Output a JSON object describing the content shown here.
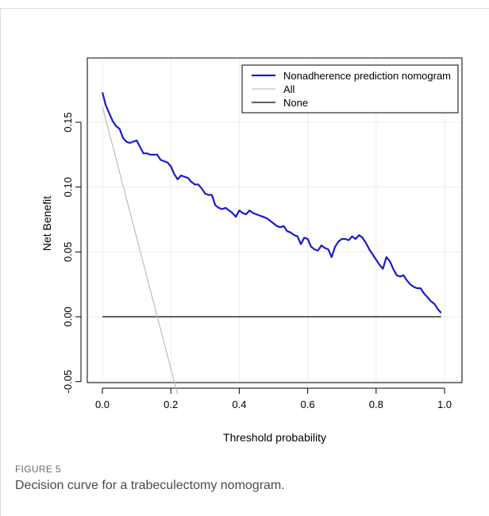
{
  "figure": {
    "label": "FIGURE 5",
    "caption": "Decision curve for a trabeculectomy nomogram."
  },
  "chart_data": {
    "type": "line",
    "xlabel": "Threshold probability",
    "ylabel": "Net Benefit",
    "xlim": [
      0.0,
      1.0
    ],
    "ylim": [
      -0.06,
      0.18
    ],
    "x_ticks": [
      "0.0",
      "0.2",
      "0.4",
      "0.6",
      "0.8",
      "1.0"
    ],
    "y_ticks": [
      "-0.05",
      "0.00",
      "0.05",
      "0.10",
      "0.15"
    ],
    "grid": true,
    "legend_position": "top-right",
    "series": [
      {
        "name": "Nonadherence prediction nomogram",
        "color": "#1a1acd",
        "x": [
          0.0,
          0.01,
          0.02,
          0.03,
          0.04,
          0.05,
          0.06,
          0.07,
          0.08,
          0.09,
          0.1,
          0.11,
          0.12,
          0.13,
          0.14,
          0.15,
          0.16,
          0.17,
          0.18,
          0.19,
          0.2,
          0.21,
          0.22,
          0.23,
          0.24,
          0.25,
          0.26,
          0.27,
          0.28,
          0.29,
          0.3,
          0.31,
          0.32,
          0.33,
          0.34,
          0.35,
          0.36,
          0.37,
          0.38,
          0.39,
          0.4,
          0.41,
          0.42,
          0.43,
          0.44,
          0.45,
          0.46,
          0.47,
          0.48,
          0.49,
          0.5,
          0.51,
          0.52,
          0.53,
          0.54,
          0.55,
          0.56,
          0.57,
          0.58,
          0.59,
          0.6,
          0.61,
          0.62,
          0.63,
          0.64,
          0.65,
          0.66,
          0.67,
          0.68,
          0.69,
          0.7,
          0.71,
          0.72,
          0.73,
          0.74,
          0.75,
          0.76,
          0.77,
          0.78,
          0.79,
          0.8,
          0.81,
          0.82,
          0.83,
          0.84,
          0.85,
          0.86,
          0.87,
          0.88,
          0.89,
          0.9,
          0.91,
          0.92,
          0.93,
          0.94,
          0.95,
          0.96,
          0.97,
          0.98,
          0.99
        ],
        "values": [
          0.173,
          0.163,
          0.157,
          0.151,
          0.147,
          0.145,
          0.138,
          0.135,
          0.134,
          0.135,
          0.136,
          0.131,
          0.126,
          0.126,
          0.125,
          0.125,
          0.125,
          0.121,
          0.12,
          0.119,
          0.116,
          0.11,
          0.106,
          0.109,
          0.108,
          0.107,
          0.104,
          0.102,
          0.102,
          0.099,
          0.095,
          0.094,
          0.094,
          0.086,
          0.084,
          0.083,
          0.084,
          0.082,
          0.08,
          0.077,
          0.082,
          0.08,
          0.079,
          0.082,
          0.08,
          0.079,
          0.078,
          0.077,
          0.076,
          0.074,
          0.072,
          0.07,
          0.069,
          0.07,
          0.066,
          0.065,
          0.063,
          0.062,
          0.056,
          0.061,
          0.06,
          0.054,
          0.052,
          0.051,
          0.055,
          0.053,
          0.052,
          0.046,
          0.054,
          0.058,
          0.06,
          0.06,
          0.059,
          0.062,
          0.06,
          0.063,
          0.061,
          0.057,
          0.052,
          0.048,
          0.044,
          0.04,
          0.037,
          0.046,
          0.043,
          0.037,
          0.032,
          0.031,
          0.032,
          0.028,
          0.025,
          0.023,
          0.022,
          0.022,
          0.018,
          0.015,
          0.012,
          0.01,
          0.006,
          0.003
        ]
      },
      {
        "name": "All",
        "color": "#bdbdbd",
        "x": [
          0.0,
          0.22
        ],
        "values": [
          0.162,
          -0.06
        ]
      },
      {
        "name": "None",
        "color": "#000000",
        "x": [
          0.0,
          0.99
        ],
        "values": [
          0.0,
          0.0
        ]
      }
    ]
  }
}
